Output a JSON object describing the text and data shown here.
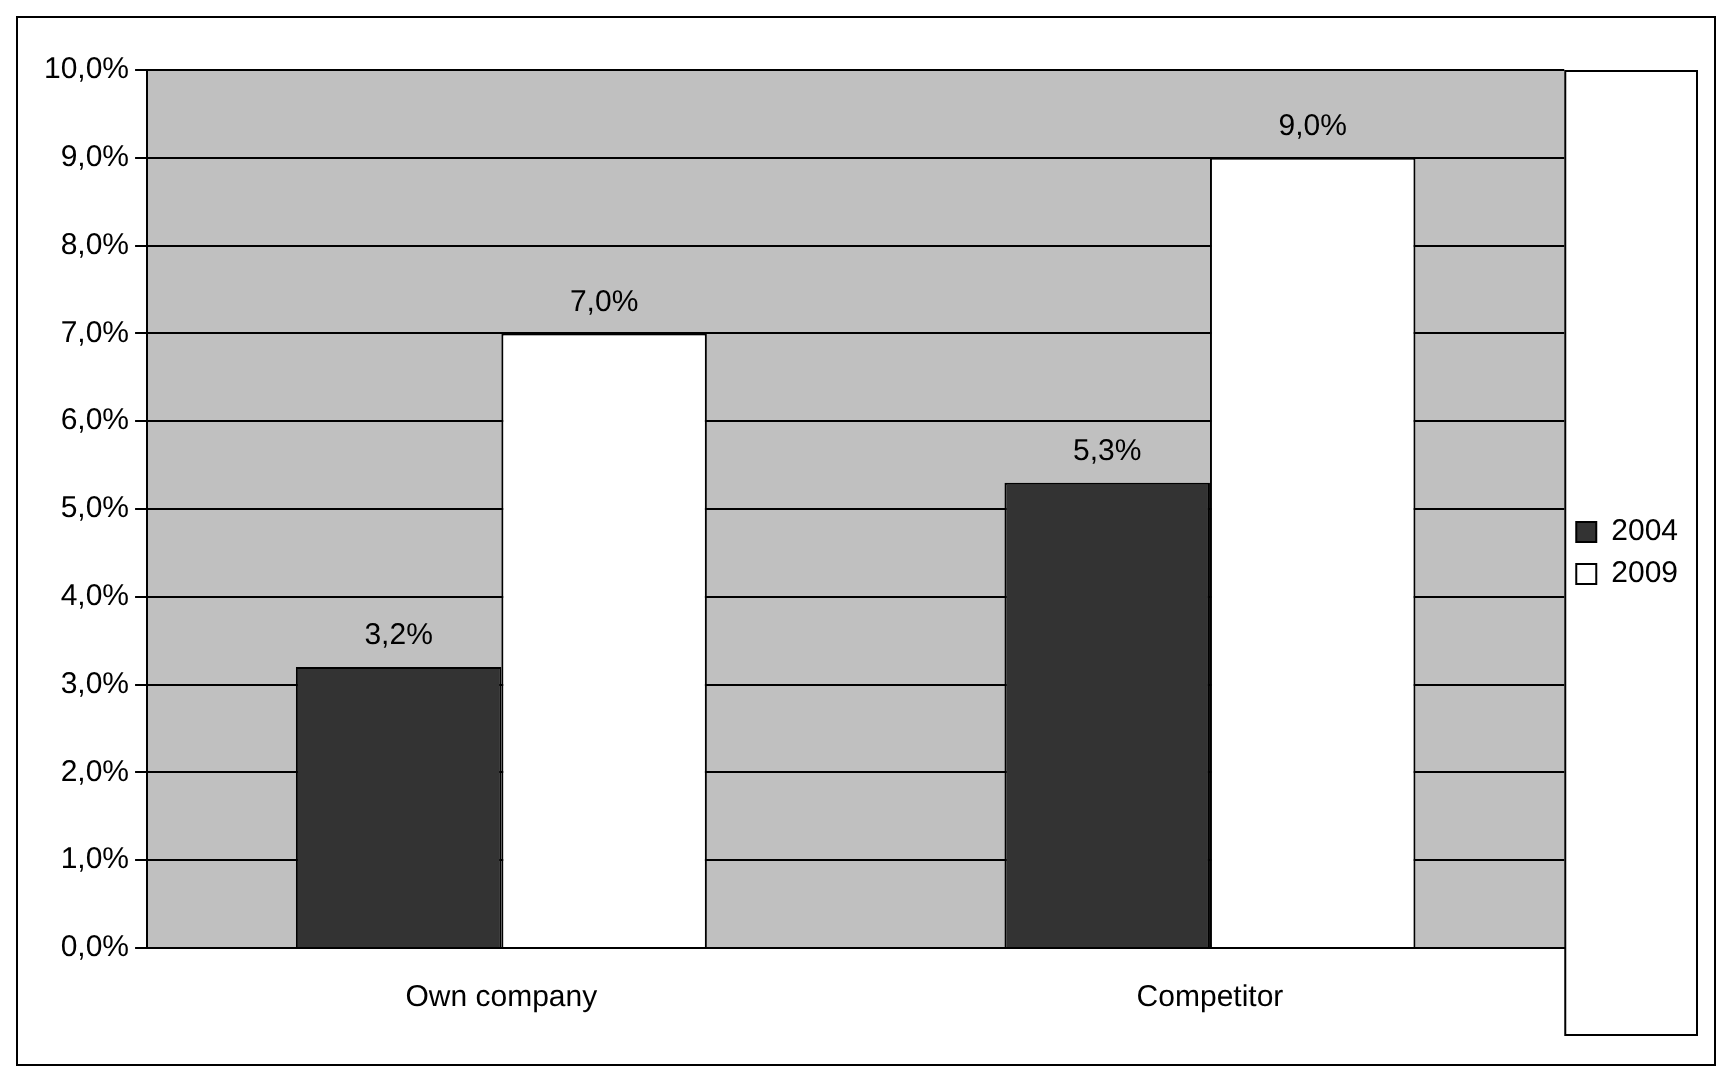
{
  "chart_data": {
    "type": "bar",
    "categories": [
      "Own company",
      "Competitor"
    ],
    "series": [
      {
        "name": "2004",
        "color": "#333333",
        "values": [
          3.2,
          5.3
        ],
        "value_labels": [
          "3,2%",
          "5,3%"
        ]
      },
      {
        "name": "2009",
        "color": "#ffffff",
        "values": [
          7.0,
          9.0
        ],
        "value_labels": [
          "7,0%",
          "9,0%"
        ]
      }
    ],
    "ylim": [
      0,
      10
    ],
    "yticks": [
      {
        "value": 0,
        "label": "0,0%"
      },
      {
        "value": 1,
        "label": "1,0%"
      },
      {
        "value": 2,
        "label": "2,0%"
      },
      {
        "value": 3,
        "label": "3,0%"
      },
      {
        "value": 4,
        "label": "4,0%"
      },
      {
        "value": 5,
        "label": "5,0%"
      },
      {
        "value": 6,
        "label": "6,0%"
      },
      {
        "value": 7,
        "label": "7,0%"
      },
      {
        "value": 8,
        "label": "8,0%"
      },
      {
        "value": 9,
        "label": "9,0%"
      },
      {
        "value": 10,
        "label": "10,0%"
      }
    ],
    "grid": "y",
    "legend": "right"
  }
}
